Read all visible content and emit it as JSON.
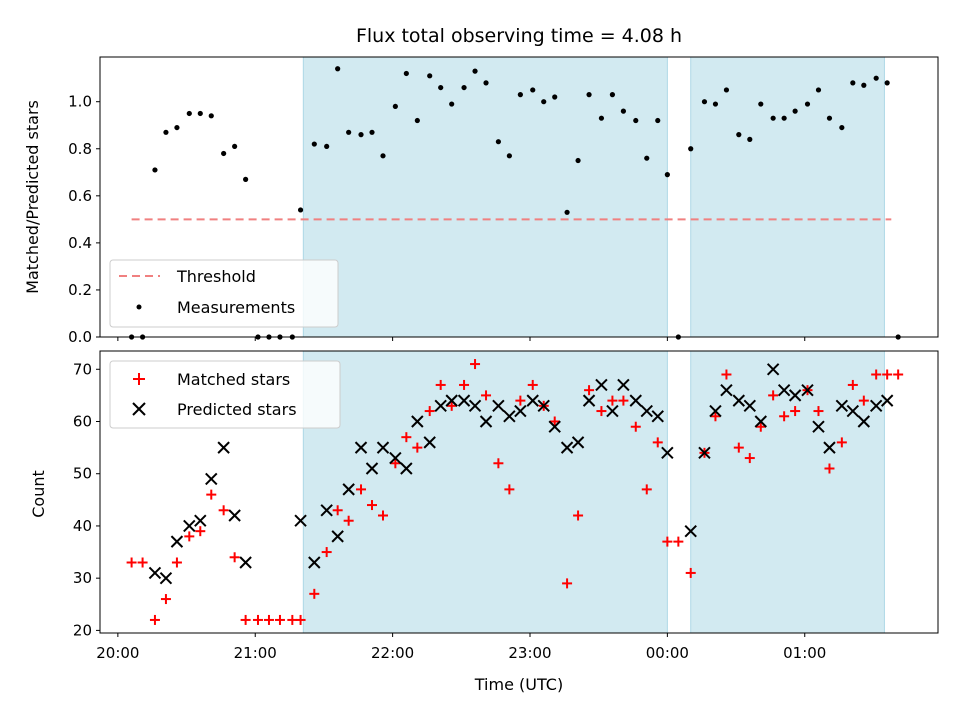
{
  "chart_data": [
    {
      "type": "scatter",
      "panel": "top",
      "title": "Flux total observing time = 4.08 h",
      "xlabel": "",
      "ylabel": "Matched/Predicted stars",
      "xlim_hours": [
        19.87,
        25.97
      ],
      "ylim": [
        0.0,
        1.19
      ],
      "yticks": [
        0.0,
        0.2,
        0.4,
        0.6,
        0.8,
        1.0
      ],
      "ytick_labels": [
        "0.0",
        "0.2",
        "0.4",
        "0.6",
        "0.8",
        "1.0"
      ],
      "shaded_intervals_hours": [
        [
          21.35,
          24.0
        ],
        [
          24.17,
          25.58
        ]
      ],
      "shade_color": "#add8e6",
      "threshold": {
        "name": "Threshold",
        "value": 0.5,
        "x_range_hours": [
          20.1,
          25.63
        ],
        "color": "#f08080",
        "style": "dashed"
      },
      "series": [
        {
          "name": "Measurements",
          "marker": "dot",
          "color": "#000000",
          "x_hours": [
            20.1,
            20.18,
            20.27,
            20.35,
            20.43,
            20.52,
            20.6,
            20.68,
            20.77,
            20.85,
            20.93,
            21.02,
            21.1,
            21.18,
            21.27,
            21.33,
            21.43,
            21.52,
            21.6,
            21.68,
            21.77,
            21.85,
            21.93,
            22.02,
            22.1,
            22.18,
            22.27,
            22.35,
            22.43,
            22.52,
            22.6,
            22.68,
            22.77,
            22.85,
            22.93,
            23.02,
            23.1,
            23.18,
            23.27,
            23.35,
            23.43,
            23.52,
            23.6,
            23.68,
            23.77,
            23.85,
            23.93,
            24.0,
            24.08,
            24.17,
            24.27,
            24.35,
            24.43,
            24.52,
            24.6,
            24.68,
            24.77,
            24.85,
            24.93,
            25.02,
            25.1,
            25.18,
            25.27,
            25.35,
            25.43,
            25.52,
            25.6,
            25.68
          ],
          "y": [
            0.0,
            0.0,
            0.71,
            0.87,
            0.89,
            0.95,
            0.95,
            0.94,
            0.78,
            0.81,
            0.67,
            0.0,
            0.0,
            0.0,
            0.0,
            0.54,
            0.82,
            0.81,
            1.14,
            0.87,
            0.86,
            0.87,
            0.77,
            0.98,
            1.12,
            0.92,
            1.11,
            1.06,
            0.99,
            1.06,
            1.13,
            1.08,
            0.83,
            0.77,
            1.03,
            1.05,
            1.0,
            1.02,
            0.53,
            0.75,
            1.03,
            0.93,
            1.03,
            0.96,
            0.92,
            0.76,
            0.92,
            0.69,
            0.0,
            0.8,
            1.0,
            0.99,
            1.05,
            0.86,
            0.84,
            0.99,
            0.93,
            0.93,
            0.96,
            0.99,
            1.05,
            0.93,
            0.89,
            1.08,
            1.07,
            1.1,
            1.08,
            0.0
          ]
        }
      ],
      "legend": {
        "placement": "lower-left",
        "entries": [
          "Threshold",
          "Measurements"
        ]
      }
    },
    {
      "type": "scatter",
      "panel": "bottom",
      "title": "",
      "xlabel": "Time (UTC)",
      "ylabel": "Count",
      "xlim_hours": [
        19.87,
        25.97
      ],
      "ylim": [
        19.5,
        73.5
      ],
      "yticks": [
        20,
        30,
        40,
        50,
        60,
        70
      ],
      "ytick_labels": [
        "20",
        "30",
        "40",
        "50",
        "60",
        "70"
      ],
      "xticks_hours": [
        20,
        21,
        22,
        23,
        24,
        25
      ],
      "xtick_labels": [
        "20:00",
        "21:00",
        "22:00",
        "23:00",
        "00:00",
        "01:00"
      ],
      "shaded_intervals_hours": [
        [
          21.35,
          24.0
        ],
        [
          24.17,
          25.58
        ]
      ],
      "shade_color": "#add8e6",
      "series": [
        {
          "name": "Matched stars",
          "marker": "plus",
          "color": "#ff0000",
          "x_hours": [
            20.1,
            20.18,
            20.27,
            20.35,
            20.43,
            20.52,
            20.6,
            20.68,
            20.77,
            20.85,
            20.93,
            21.02,
            21.1,
            21.18,
            21.27,
            21.33,
            21.43,
            21.52,
            21.6,
            21.68,
            21.77,
            21.85,
            21.93,
            22.02,
            22.1,
            22.18,
            22.27,
            22.35,
            22.43,
            22.52,
            22.6,
            22.68,
            22.77,
            22.85,
            22.93,
            23.02,
            23.1,
            23.18,
            23.27,
            23.35,
            23.43,
            23.52,
            23.6,
            23.68,
            23.77,
            23.85,
            23.93,
            24.0,
            24.08,
            24.17,
            24.27,
            24.35,
            24.43,
            24.52,
            24.6,
            24.68,
            24.77,
            24.85,
            24.93,
            25.02,
            25.1,
            25.18,
            25.27,
            25.35,
            25.43,
            25.52,
            25.6,
            25.68
          ],
          "y": [
            33,
            33,
            22,
            26,
            33,
            38,
            39,
            46,
            43,
            34,
            22,
            22,
            22,
            22,
            22,
            22,
            27,
            35,
            43,
            41,
            47,
            44,
            42,
            52,
            57,
            55,
            62,
            67,
            63,
            67,
            71,
            65,
            52,
            47,
            64,
            67,
            63,
            60,
            29,
            42,
            66,
            62,
            64,
            64,
            59,
            47,
            56,
            37,
            37,
            31,
            54,
            61,
            69,
            55,
            53,
            59,
            65,
            61,
            62,
            66,
            62,
            51,
            56,
            67,
            64,
            69,
            69,
            69
          ]
        },
        {
          "name": "Predicted stars",
          "marker": "x",
          "color": "#000000",
          "x_hours": [
            20.27,
            20.35,
            20.43,
            20.52,
            20.6,
            20.68,
            20.77,
            20.85,
            20.93,
            21.33,
            21.43,
            21.52,
            21.6,
            21.68,
            21.77,
            21.85,
            21.93,
            22.02,
            22.1,
            22.18,
            22.27,
            22.35,
            22.43,
            22.52,
            22.6,
            22.68,
            22.77,
            22.85,
            22.93,
            23.02,
            23.1,
            23.18,
            23.27,
            23.35,
            23.43,
            23.52,
            23.6,
            23.68,
            23.77,
            23.85,
            23.93,
            24.0,
            24.17,
            24.27,
            24.35,
            24.43,
            24.52,
            24.6,
            24.68,
            24.77,
            24.85,
            24.93,
            25.02,
            25.1,
            25.18,
            25.27,
            25.35,
            25.43,
            25.52,
            25.6
          ],
          "y": [
            31,
            30,
            37,
            40,
            41,
            49,
            55,
            42,
            33,
            41,
            33,
            43,
            38,
            47,
            55,
            51,
            55,
            53,
            51,
            60,
            56,
            63,
            64,
            64,
            63,
            60,
            63,
            61,
            62,
            64,
            63,
            59,
            55,
            56,
            64,
            67,
            62,
            67,
            64,
            62,
            61,
            54,
            39,
            54,
            62,
            66,
            64,
            63,
            60,
            70,
            66,
            65,
            66,
            59,
            55,
            63,
            62,
            60,
            63,
            64
          ]
        }
      ],
      "legend": {
        "placement": "upper-left",
        "entries": [
          "Matched stars",
          "Predicted stars"
        ]
      }
    }
  ]
}
